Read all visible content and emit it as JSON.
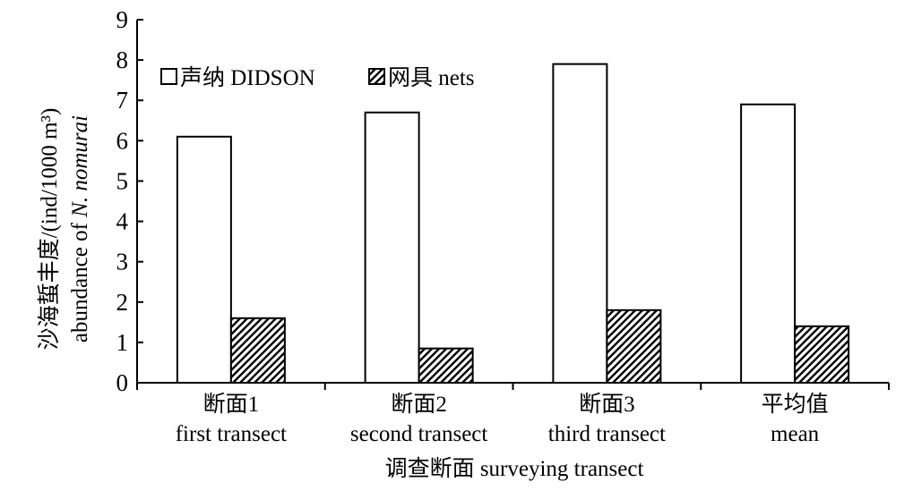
{
  "chart_data": {
    "type": "bar",
    "categories": [
      {
        "zh": "断面1",
        "en": "first transect"
      },
      {
        "zh": "断面2",
        "en": "second transect"
      },
      {
        "zh": "断面3",
        "en": "third transect"
      },
      {
        "zh": "平均值",
        "en": "mean"
      }
    ],
    "series": [
      {
        "name": "声纳 DIDSON",
        "fill": "#ffffff",
        "pattern": "none",
        "values": [
          6.1,
          6.7,
          7.9,
          6.9
        ]
      },
      {
        "name": "网具 nets",
        "fill": "#ffffff",
        "pattern": "diagonal-hatch",
        "values": [
          1.6,
          0.85,
          1.8,
          1.4
        ]
      }
    ],
    "ylim": [
      0,
      9
    ],
    "yticks": [
      "0",
      "1",
      "2",
      "3",
      "4",
      "5",
      "6",
      "7",
      "8",
      "9"
    ],
    "ylabel": {
      "line1": "沙海蜇丰度/(ind/1000 m³)",
      "line2_prefix": "abundance of ",
      "line2_italic": "N. nomurai"
    },
    "xlabel": "调查断面 surveying transect",
    "legend_position": "top-left",
    "grid": false,
    "colors": {
      "axis": "#000000",
      "bar_stroke": "#000000",
      "bar_fill": "#ffffff"
    }
  }
}
